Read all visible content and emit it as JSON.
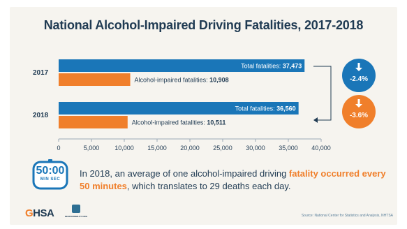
{
  "chart_data": {
    "type": "bar",
    "title": "National Alcohol-Impaired Driving Fatalities, 2017-2018",
    "orientation": "horizontal",
    "categories": [
      "2017",
      "2018"
    ],
    "series": [
      {
        "name": "Total fatalities",
        "values": [
          37473,
          36560
        ],
        "color": "#1a76b8"
      },
      {
        "name": "Alcohol-impaired fatalities",
        "values": [
          10908,
          10511
        ],
        "color": "#f07f2b"
      }
    ],
    "bar_labels": [
      {
        "total": "Total fatalities: 37,473",
        "alcohol": "Alcohol-impaired fatalities: 10,908"
      },
      {
        "total": "Total fatalities: 36,560",
        "alcohol": "Alcohol-impaired fatalities: 10,511"
      }
    ],
    "xlim": [
      0,
      40000
    ],
    "xticks": [
      0,
      5000,
      10000,
      15000,
      20000,
      25000,
      30000,
      35000,
      40000
    ],
    "xtick_labels": [
      "0",
      "5,000",
      "10,000",
      "15,000",
      "20,000",
      "25,000",
      "30,000",
      "35,000",
      "40,000"
    ],
    "changes": [
      {
        "label": "-2.4%",
        "applies_to": "Total fatalities",
        "color": "#1a76b8",
        "icon": "down-arrow-icon"
      },
      {
        "label": "-3.6%",
        "applies_to": "Alcohol-impaired fatalities",
        "color": "#f07f2b",
        "icon": "down-arrow-icon"
      }
    ]
  },
  "callout": {
    "timer_number": "50:00",
    "timer_units": "MIN SEC",
    "text_before": "In 2018, an average of one alcohol-impaired driving ",
    "text_highlight": "fatality occurred every 50 minutes",
    "text_after": ", which translates to 29 deaths each day."
  },
  "footer": {
    "ghsa_logo_prefix": "G",
    "ghsa_logo_rest": "HSA",
    "responsibility_logo_text": "RESPONSIBILITY.ORG",
    "source": "Source: National Center for Statistics and Analysis, NHTSA"
  }
}
